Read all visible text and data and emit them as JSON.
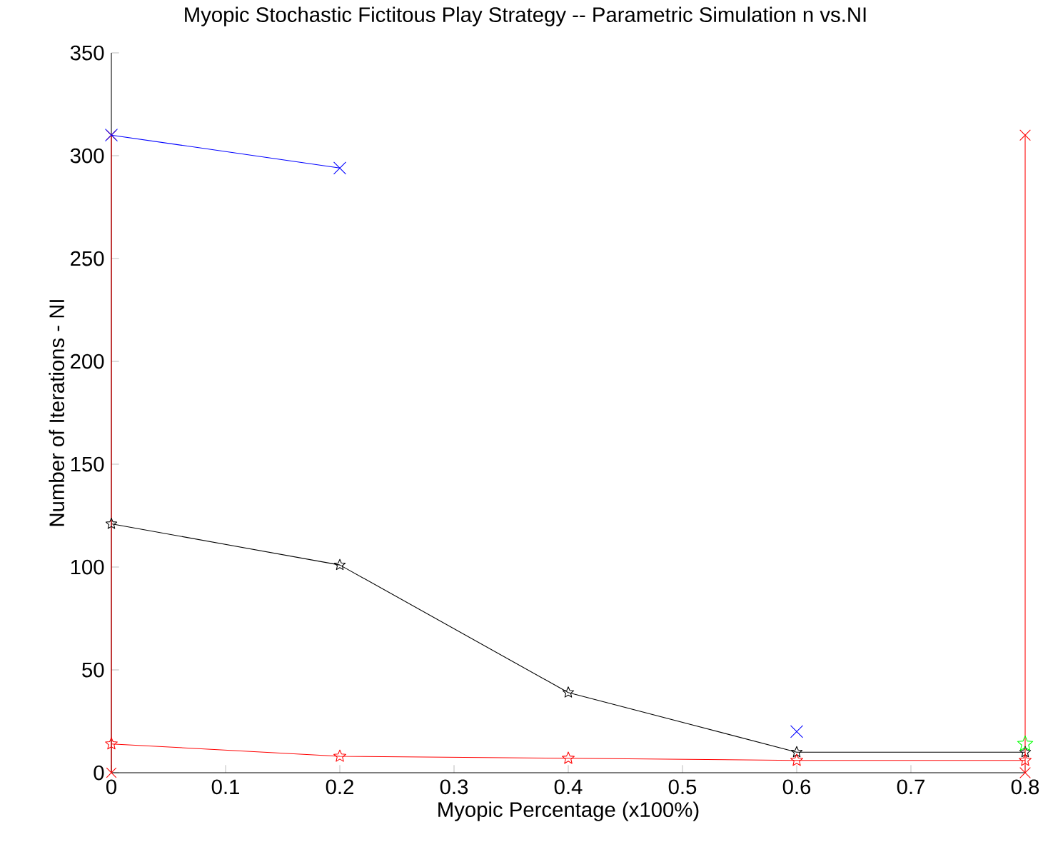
{
  "chart_data": {
    "type": "line",
    "title": "Myopic Stochastic Fictitous Play Strategy -- Parametric Simulation n vs.NI",
    "xlabel": "Myopic Percentage (x100%)",
    "ylabel": "Number of Iterations - NI",
    "x": [
      0,
      0.2,
      0.4,
      0.6,
      0.8
    ],
    "series": [
      {
        "color": "#000000",
        "marker": "star",
        "values": [
          121,
          101,
          39,
          10,
          10
        ]
      },
      {
        "color": "#ff0000",
        "marker": "star",
        "values": [
          14,
          8,
          7,
          6,
          6
        ]
      },
      {
        "color": "#ff0000",
        "marker": "cross",
        "x": [
          0,
          0
        ],
        "values": [
          0,
          310
        ]
      },
      {
        "color": "#ff0000",
        "marker": "cross",
        "x": [
          0.8,
          0.8
        ],
        "values": [
          0,
          310
        ]
      },
      {
        "color": "#00ff00",
        "marker": "star",
        "x": [
          0.8
        ],
        "values": [
          14
        ]
      },
      {
        "color": "#0000ff",
        "marker": "cross",
        "x": [
          0,
          0.2,
          0.4,
          0.6
        ],
        "values": [
          310,
          294,
          null,
          20
        ]
      }
    ],
    "xlim": [
      0,
      0.8
    ],
    "ylim": [
      0,
      350
    ],
    "xticks": [
      0,
      0.1,
      0.2,
      0.3,
      0.4,
      0.5,
      0.6,
      0.7,
      0.8
    ],
    "yticks": [
      0,
      50,
      100,
      150,
      200,
      250,
      300,
      350
    ],
    "grid": false,
    "line_style": "solid"
  }
}
